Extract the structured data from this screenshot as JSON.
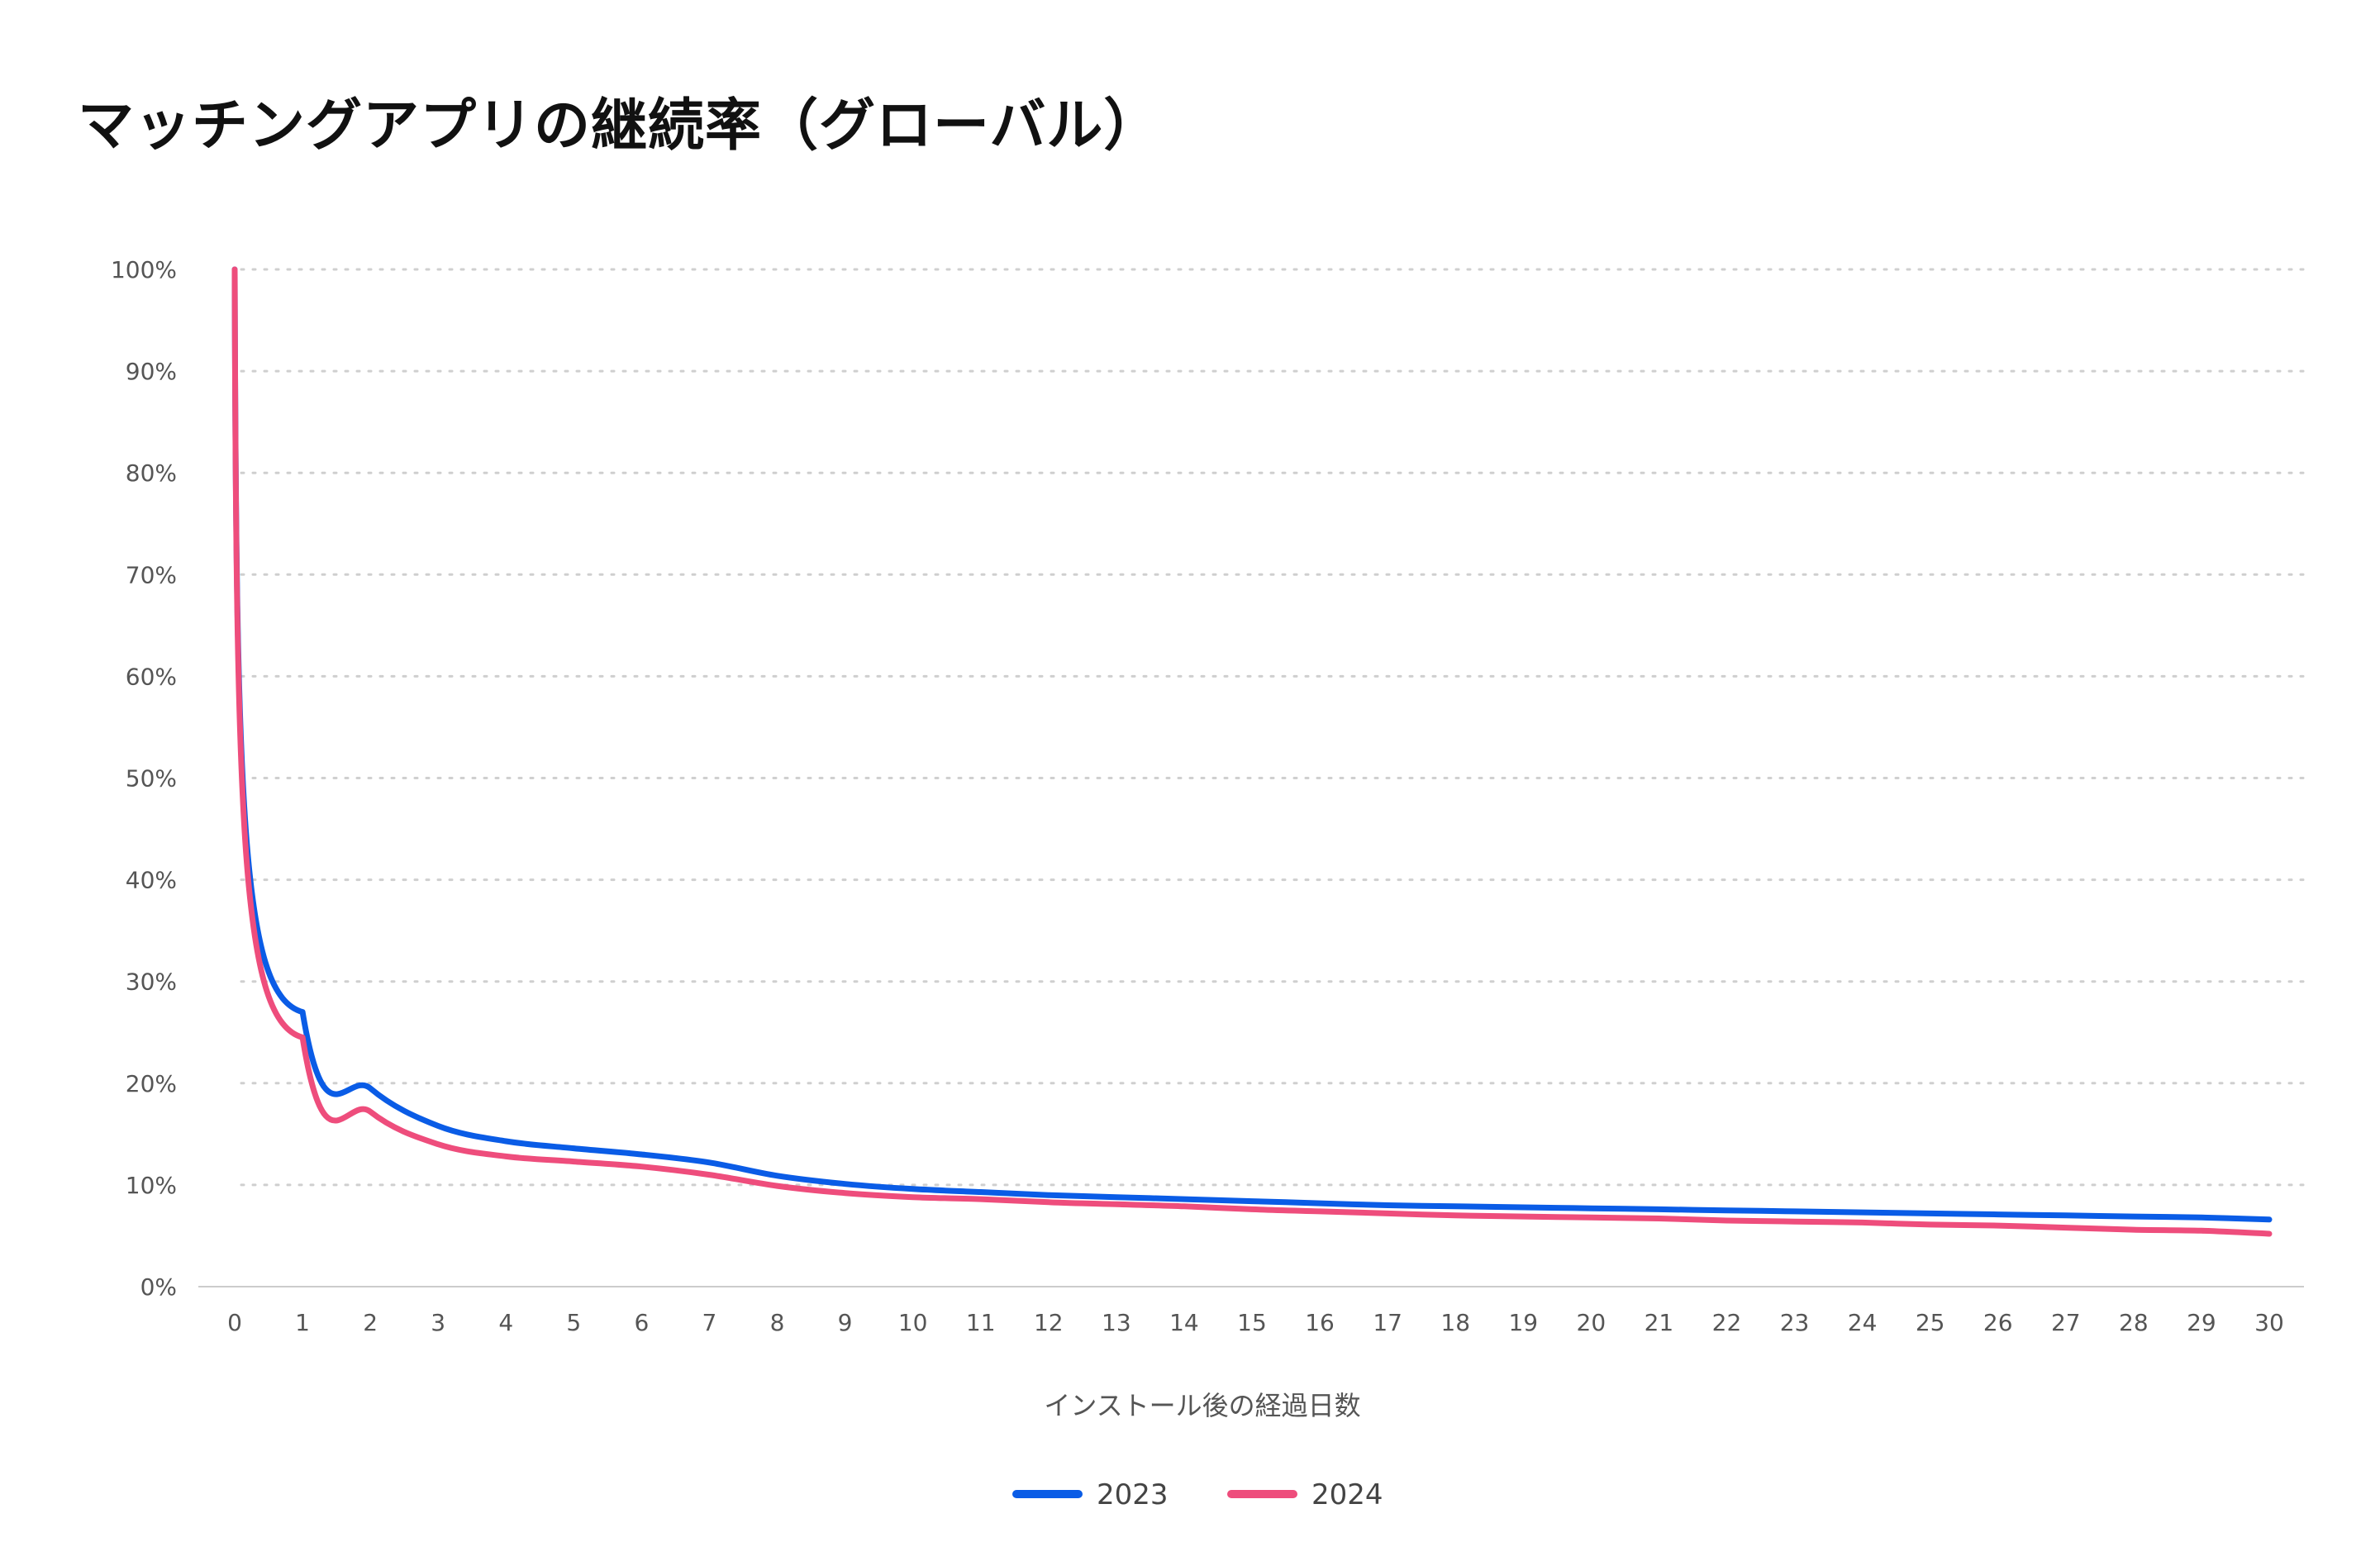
{
  "chart_data": {
    "type": "line",
    "title": "マッチングアプリの継続率（グローバル）",
    "xlabel": "インストール後の経過日数",
    "ylabel": "",
    "x": [
      0,
      1,
      2,
      3,
      4,
      5,
      6,
      7,
      8,
      9,
      10,
      11,
      12,
      13,
      14,
      15,
      16,
      17,
      18,
      19,
      20,
      21,
      22,
      23,
      24,
      25,
      26,
      27,
      28,
      29,
      30
    ],
    "xlim": [
      0,
      30
    ],
    "ylim": [
      0,
      100
    ],
    "yticks": [
      "0%",
      "10%",
      "20%",
      "30%",
      "40%",
      "50%",
      "60%",
      "70%",
      "80%",
      "90%",
      "100%"
    ],
    "grid": true,
    "legend_position": "bottom",
    "series": [
      {
        "name": "2023",
        "color": "#0a5ce6",
        "values": [
          100,
          27,
          19.5,
          15.8,
          14.3,
          13.6,
          13.0,
          12.2,
          10.9,
          10.1,
          9.6,
          9.3,
          9.0,
          8.8,
          8.6,
          8.4,
          8.2,
          8.0,
          7.9,
          7.8,
          7.7,
          7.6,
          7.5,
          7.4,
          7.3,
          7.2,
          7.1,
          7.0,
          6.9,
          6.8,
          6.6
        ]
      },
      {
        "name": "2024",
        "color": "#ee4d7c",
        "values": [
          100,
          24.5,
          17.2,
          14.0,
          12.8,
          12.3,
          11.8,
          11.0,
          9.9,
          9.2,
          8.8,
          8.6,
          8.3,
          8.1,
          7.9,
          7.6,
          7.4,
          7.2,
          7.0,
          6.9,
          6.8,
          6.7,
          6.5,
          6.4,
          6.3,
          6.1,
          6.0,
          5.8,
          5.6,
          5.5,
          5.2
        ]
      }
    ]
  }
}
